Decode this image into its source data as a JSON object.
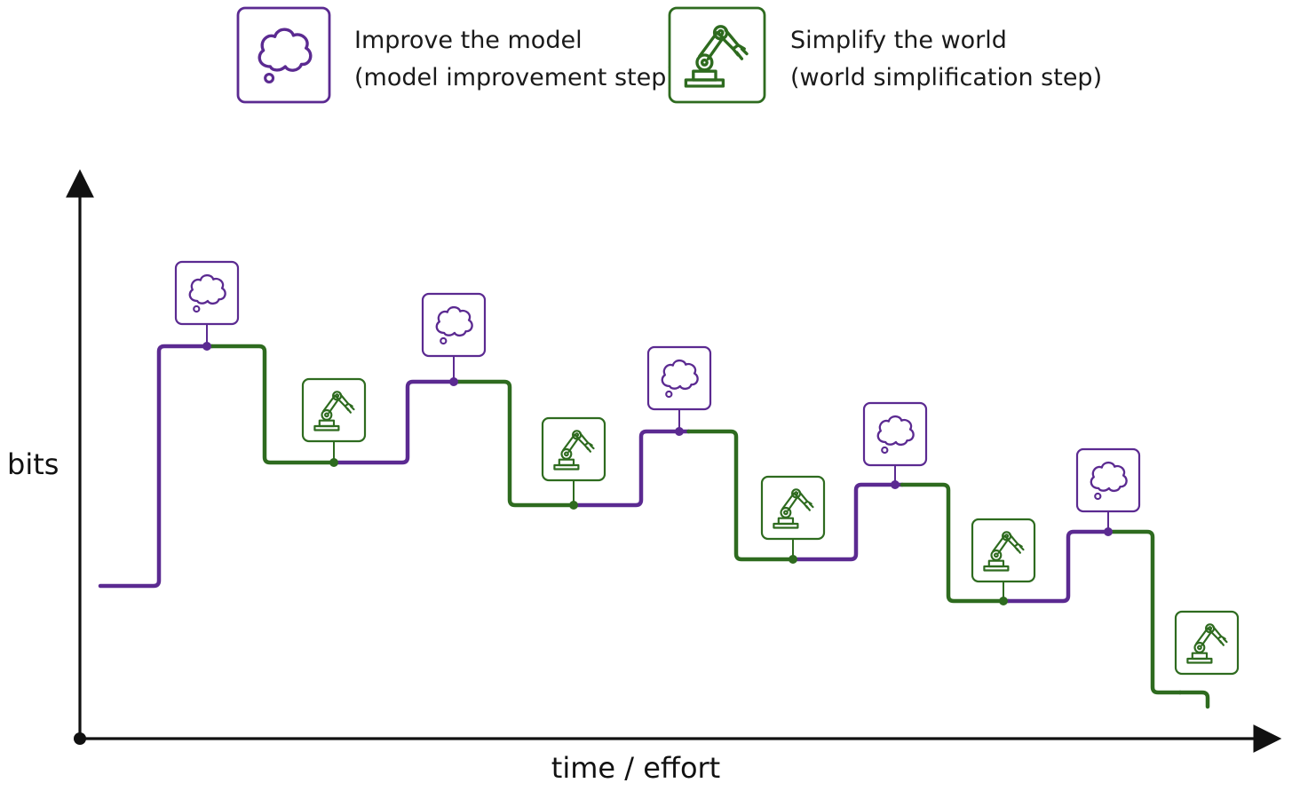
{
  "legend": {
    "model_step": {
      "line1": "Improve the model",
      "line2": "(model improvement step)",
      "icon": "thought-bubble-icon",
      "color": "#5b2a91"
    },
    "world_step": {
      "line1": "Simplify the world",
      "line2": "(world simplification step)",
      "icon": "robot-arm-icon",
      "color": "#2e6b1f"
    }
  },
  "axes": {
    "ylabel": "bits",
    "xlabel": "time / effort",
    "color": "#111111"
  },
  "steps": [
    {
      "type": "model",
      "icon": "thought-bubble-icon"
    },
    {
      "type": "world",
      "icon": "robot-arm-icon"
    },
    {
      "type": "model",
      "icon": "thought-bubble-icon"
    },
    {
      "type": "world",
      "icon": "robot-arm-icon"
    },
    {
      "type": "model",
      "icon": "thought-bubble-icon"
    },
    {
      "type": "world",
      "icon": "robot-arm-icon"
    },
    {
      "type": "model",
      "icon": "thought-bubble-icon"
    },
    {
      "type": "world",
      "icon": "robot-arm-icon"
    },
    {
      "type": "model",
      "icon": "thought-bubble-icon"
    },
    {
      "type": "world",
      "icon": "robot-arm-icon"
    }
  ]
}
